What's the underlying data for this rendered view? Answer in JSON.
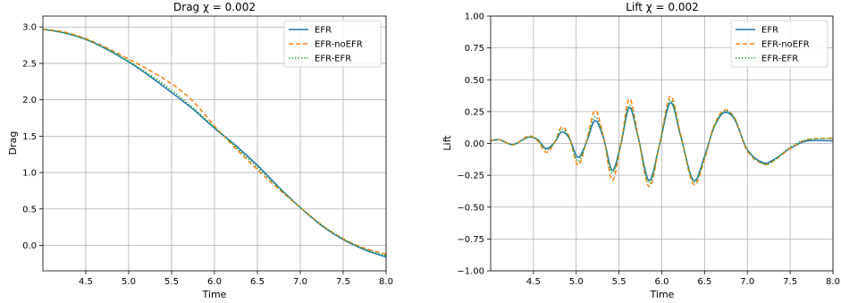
{
  "chart_data": [
    {
      "type": "line",
      "title": "Drag χ = 0.002",
      "xlabel": "Time",
      "ylabel": "Drag",
      "xlim": [
        4.0,
        8.0
      ],
      "ylim": [
        -0.35,
        3.15
      ],
      "xticks": [
        "4.5",
        "5.0",
        "5.5",
        "6.0",
        "6.5",
        "7.0",
        "7.5",
        "8.0"
      ],
      "yticks": [
        "0.0",
        "0.5",
        "1.0",
        "1.5",
        "2.0",
        "2.5",
        "3.0"
      ],
      "grid": true,
      "legend": "top-right",
      "series": [
        {
          "name": "EFR",
          "color": "#1f77b4",
          "style": "solid",
          "x": [
            4.0,
            4.25,
            4.5,
            4.75,
            5.0,
            5.25,
            5.5,
            5.75,
            6.0,
            6.25,
            6.5,
            6.75,
            7.0,
            7.25,
            7.5,
            7.75,
            8.0
          ],
          "y": [
            2.97,
            2.92,
            2.83,
            2.69,
            2.52,
            2.32,
            2.1,
            1.87,
            1.61,
            1.37,
            1.1,
            0.8,
            0.52,
            0.27,
            0.08,
            -0.06,
            -0.16
          ]
        },
        {
          "name": "EFR-noEFR",
          "color": "#ff7f0e",
          "style": "dashed",
          "x": [
            4.0,
            4.25,
            4.5,
            4.75,
            5.0,
            5.25,
            5.5,
            5.75,
            6.0,
            6.25,
            6.5,
            6.75,
            7.0,
            7.25,
            7.5,
            7.75,
            8.0
          ],
          "y": [
            2.97,
            2.93,
            2.84,
            2.71,
            2.56,
            2.4,
            2.22,
            1.98,
            1.64,
            1.33,
            1.04,
            0.77,
            0.52,
            0.28,
            0.09,
            -0.04,
            -0.12
          ]
        },
        {
          "name": "EFR-EFR",
          "color": "#2ca02c",
          "style": "dotted",
          "x": [
            4.0,
            4.25,
            4.5,
            4.75,
            5.0,
            5.25,
            5.5,
            5.75,
            6.0,
            6.25,
            6.5,
            6.75,
            7.0,
            7.25,
            7.5,
            7.75,
            8.0
          ],
          "y": [
            2.97,
            2.92,
            2.83,
            2.7,
            2.53,
            2.34,
            2.13,
            1.89,
            1.62,
            1.35,
            1.07,
            0.79,
            0.52,
            0.28,
            0.09,
            -0.05,
            -0.14
          ]
        }
      ]
    },
    {
      "type": "line",
      "title": "Lift χ = 0.002",
      "xlabel": "Time",
      "ylabel": "Lift",
      "xlim": [
        4.0,
        8.0
      ],
      "ylim": [
        -1.0,
        1.0
      ],
      "xticks": [
        "4.5",
        "5.0",
        "5.5",
        "6.0",
        "6.5",
        "7.0",
        "7.5",
        "8.0"
      ],
      "yticks": [
        "−1.00",
        "−0.75",
        "−0.50",
        "−0.25",
        "0.00",
        "0.25",
        "0.50",
        "0.75",
        "1.00"
      ],
      "grid": true,
      "legend": "top-right",
      "series": [
        {
          "name": "EFR",
          "color": "#1f77b4",
          "style": "solid",
          "x": [
            4.0,
            4.1,
            4.25,
            4.35,
            4.45,
            4.55,
            4.65,
            4.75,
            4.83,
            4.92,
            5.02,
            5.12,
            5.22,
            5.32,
            5.42,
            5.52,
            5.62,
            5.72,
            5.85,
            5.97,
            6.1,
            6.22,
            6.37,
            6.5,
            6.6,
            6.72,
            6.85,
            7.0,
            7.18,
            7.3,
            7.5,
            7.7,
            8.0
          ],
          "y": [
            0.02,
            0.03,
            -0.01,
            0.02,
            0.05,
            0.03,
            -0.04,
            0.01,
            0.09,
            0.04,
            -0.11,
            0.01,
            0.18,
            0.04,
            -0.21,
            -0.01,
            0.28,
            0.06,
            -0.29,
            -0.02,
            0.32,
            0.06,
            -0.29,
            -0.1,
            0.11,
            0.24,
            0.19,
            -0.05,
            -0.15,
            -0.13,
            -0.04,
            0.02,
            0.02
          ]
        },
        {
          "name": "EFR-noEFR",
          "color": "#ff7f0e",
          "style": "dashed",
          "x": [
            4.0,
            4.1,
            4.25,
            4.35,
            4.45,
            4.55,
            4.65,
            4.75,
            4.83,
            4.92,
            5.02,
            5.12,
            5.22,
            5.32,
            5.42,
            5.52,
            5.62,
            5.72,
            5.85,
            5.97,
            6.1,
            6.22,
            6.37,
            6.5,
            6.6,
            6.72,
            6.85,
            7.0,
            7.18,
            7.3,
            7.5,
            7.7,
            8.0
          ],
          "y": [
            0.02,
            0.03,
            -0.01,
            0.02,
            0.06,
            0.02,
            -0.07,
            0.01,
            0.13,
            0.05,
            -0.17,
            0.02,
            0.26,
            0.05,
            -0.29,
            -0.01,
            0.35,
            0.07,
            -0.34,
            -0.02,
            0.37,
            0.07,
            -0.32,
            -0.12,
            0.12,
            0.26,
            0.2,
            -0.06,
            -0.16,
            -0.14,
            -0.04,
            0.03,
            0.04
          ]
        },
        {
          "name": "EFR-EFR",
          "color": "#2ca02c",
          "style": "dotted",
          "x": [
            4.0,
            4.1,
            4.25,
            4.35,
            4.45,
            4.55,
            4.65,
            4.75,
            4.83,
            4.92,
            5.02,
            5.12,
            5.22,
            5.32,
            5.42,
            5.52,
            5.62,
            5.72,
            5.85,
            5.97,
            6.1,
            6.22,
            6.37,
            6.5,
            6.6,
            6.72,
            6.85,
            7.0,
            7.18,
            7.3,
            7.5,
            7.7,
            8.0
          ],
          "y": [
            0.02,
            0.03,
            -0.01,
            0.02,
            0.05,
            0.03,
            -0.05,
            0.01,
            0.11,
            0.04,
            -0.14,
            0.01,
            0.21,
            0.04,
            -0.23,
            -0.01,
            0.3,
            0.06,
            -0.31,
            -0.02,
            0.34,
            0.06,
            -0.3,
            -0.11,
            0.11,
            0.25,
            0.2,
            -0.05,
            -0.16,
            -0.14,
            -0.03,
            0.03,
            0.04
          ]
        }
      ]
    }
  ]
}
